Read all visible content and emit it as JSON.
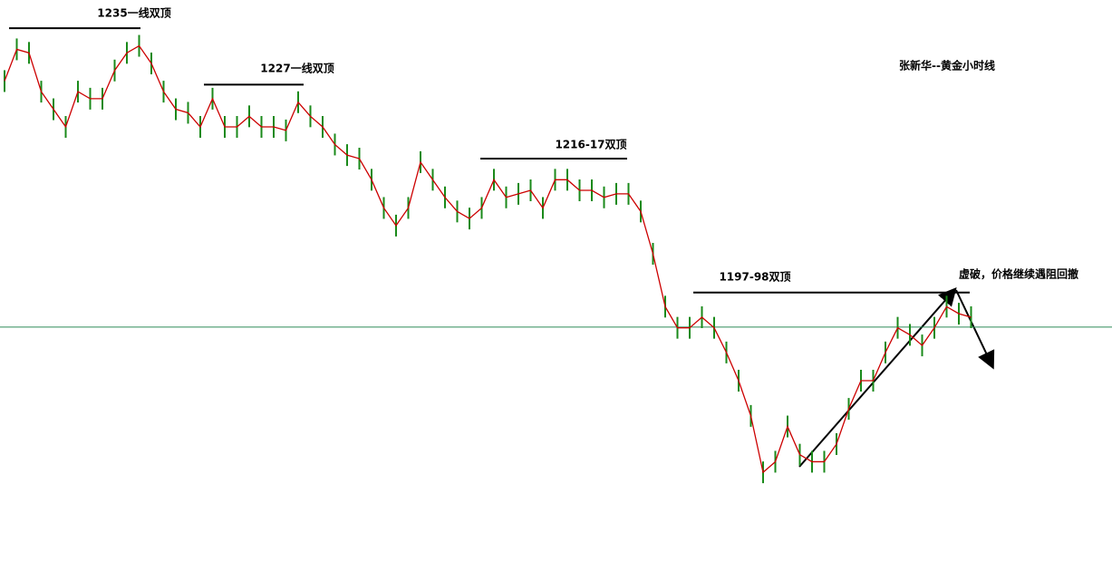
{
  "chart_data": {
    "type": "line",
    "title": "张新华--黄金小时线",
    "annotation": "虚破，价格继续遇阻回撤",
    "values": [
      1227.5,
      1232,
      1231.5,
      1226,
      1223.5,
      1221,
      1226,
      1225,
      1225,
      1229,
      1231.5,
      1232.5,
      1230,
      1226,
      1223.5,
      1223,
      1221,
      1225,
      1221,
      1221,
      1222.5,
      1221,
      1221,
      1220.5,
      1224.5,
      1222.5,
      1221,
      1218.5,
      1217,
      1216.5,
      1213.5,
      1209.5,
      1207,
      1209.5,
      1216,
      1213.5,
      1211,
      1209,
      1208,
      1209.5,
      1213.5,
      1211,
      1211.5,
      1212,
      1209.5,
      1213.5,
      1213.5,
      1212,
      1212,
      1211,
      1211.5,
      1211.5,
      1209,
      1203,
      1195.5,
      1192.5,
      1192.5,
      1194,
      1192.5,
      1189,
      1185,
      1180,
      1172,
      1173.5,
      1178.5,
      1174.5,
      1173.5,
      1173.5,
      1176,
      1181,
      1185,
      1185,
      1189,
      1192.5,
      1191.5,
      1190,
      1192.5,
      1195.5,
      1194.5,
      1194
    ],
    "bar_color": "#1a8a1a",
    "line_color": "#cc0000",
    "ylim": [
      1158,
      1239
    ],
    "current_price": 1192.6,
    "current_price_color": "#2e8b57",
    "levels": [
      {
        "label": "1235一线双顶",
        "value": 1235
      },
      {
        "label": "1227一线双顶",
        "value": 1227
      },
      {
        "label": "1216-17双顶",
        "value": 1216.5
      },
      {
        "label": "1197-98双顶",
        "value": 1197.5
      }
    ]
  }
}
